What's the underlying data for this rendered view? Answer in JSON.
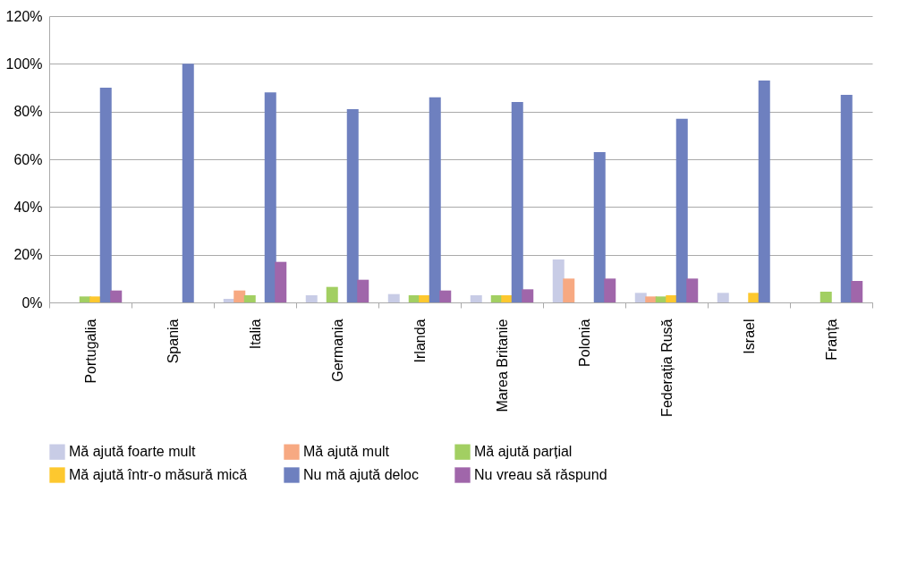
{
  "chart_data": {
    "type": "bar",
    "categories": [
      "Portugalia",
      "Spania",
      "Italia",
      "Germania",
      "Irlanda",
      "Marea Britanie",
      "Polonia",
      "Federația Rusă",
      "Israel",
      "Franța"
    ],
    "series": [
      {
        "name": "Mă ajută foarte mult",
        "color": "#c8cce6",
        "values": [
          null,
          null,
          1.5,
          3,
          3.5,
          3,
          18,
          4,
          4,
          null
        ]
      },
      {
        "name": "Mă ajută mult",
        "color": "#f7a982",
        "values": [
          null,
          null,
          5,
          null,
          null,
          null,
          10,
          2.5,
          null,
          null
        ]
      },
      {
        "name": "Mă ajută parțial",
        "color": "#a2cf62",
        "values": [
          2.5,
          null,
          3,
          6.5,
          3,
          3,
          null,
          2.5,
          null,
          4.5
        ]
      },
      {
        "name": "Mă ajută într-o măsură mică",
        "color": "#fdc82f",
        "values": [
          2.5,
          null,
          null,
          null,
          3,
          3,
          null,
          3,
          4,
          null
        ]
      },
      {
        "name": "Nu mă ajută deloc",
        "color": "#6e80bf",
        "values": [
          90,
          100,
          88,
          81,
          86,
          84,
          63,
          77,
          93,
          87
        ]
      },
      {
        "name": "Nu vreau să răspund",
        "color": "#a066aa",
        "values": [
          5,
          null,
          17,
          9.5,
          5,
          5.5,
          10,
          10,
          null,
          9
        ]
      }
    ],
    "ylim": [
      0,
      120
    ],
    "yticks": [
      {
        "value": 0,
        "label": "0%"
      },
      {
        "value": 20,
        "label": "20%"
      },
      {
        "value": 40,
        "label": "40%"
      },
      {
        "value": 60,
        "label": "60%"
      },
      {
        "value": 80,
        "label": "80%"
      },
      {
        "value": 100,
        "label": "100%"
      },
      {
        "value": 120,
        "label": "120%"
      }
    ],
    "grid": "y",
    "legend": "bottom"
  }
}
